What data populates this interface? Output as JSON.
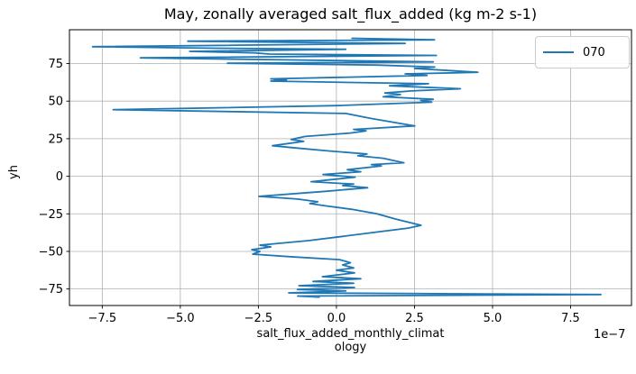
{
  "figure": {
    "title": "May, zonally averaged salt_flux_added (kg m-2 s-1)",
    "ylabel": "yh",
    "xlabel_line1": "salt_flux_added_monthly_climat",
    "xlabel_line2": "ology",
    "offset_text": "1e−7",
    "legend": {
      "label": "070",
      "line_color": "#1f77b4"
    }
  },
  "chart_data": {
    "type": "line",
    "title": "May, zonally averaged salt_flux_added (kg m-2 s-1)",
    "xlabel": "salt_flux_added_monthly_climatology",
    "ylabel": "yh",
    "x_scale": 1e-07,
    "x_offset_label": "1e−7",
    "grid": true,
    "legend_position": "upper right",
    "xlim": [
      -8.55,
      9.45
    ],
    "ylim": [
      -86.0,
      97.5
    ],
    "xticks": {
      "values": [
        -7.5,
        -5.0,
        -2.5,
        0.0,
        2.5,
        5.0,
        7.5
      ],
      "labels": [
        "−7.5",
        "−5.0",
        "−2.5",
        "0.0",
        "2.5",
        "5.0",
        "7.5"
      ]
    },
    "yticks": {
      "values": [
        75,
        50,
        25,
        0,
        -25,
        -50,
        -75
      ],
      "labels": [
        "75",
        "50",
        "25",
        "0",
        "−25",
        "−50",
        "−75"
      ]
    },
    "colors": {
      "line": "#1f77b4",
      "grid": "#b0b0b0",
      "spine": "#000000",
      "text": "#000000"
    },
    "series": [
      {
        "name": "070",
        "points": [
          [
            0.5,
            91.8
          ],
          [
            3.14,
            90.8
          ],
          [
            -4.76,
            89.9
          ],
          [
            2.2,
            88.4
          ],
          [
            -7.81,
            86.2
          ],
          [
            -3.9,
            85.2
          ],
          [
            0.3,
            84.5
          ],
          [
            -4.7,
            83.1
          ],
          [
            -2.6,
            82.1
          ],
          [
            -2.15,
            81.3
          ],
          [
            3.2,
            80.4
          ],
          [
            -6.28,
            78.8
          ],
          [
            -1.4,
            77.4
          ],
          [
            3.1,
            76.1
          ],
          [
            -3.49,
            75.2
          ],
          [
            1.3,
            74.0
          ],
          [
            3.15,
            72.7
          ],
          [
            2.5,
            71.7
          ],
          [
            4.53,
            69.2
          ],
          [
            2.2,
            68.1
          ],
          [
            2.9,
            67.1
          ],
          [
            -2.1,
            64.8
          ],
          [
            -1.6,
            64.1
          ],
          [
            -2.1,
            63.3
          ],
          [
            2.95,
            61.6
          ],
          [
            1.7,
            60.2
          ],
          [
            3.97,
            58.2
          ],
          [
            2.4,
            56.8
          ],
          [
            1.55,
            55.4
          ],
          [
            2.05,
            54.4
          ],
          [
            1.5,
            52.9
          ],
          [
            3.1,
            51.2
          ],
          [
            2.7,
            50.3
          ],
          [
            3.05,
            49.3
          ],
          [
            0.0,
            47.0
          ],
          [
            -7.15,
            44.3
          ],
          [
            0.3,
            41.8
          ],
          [
            1.1,
            38.5
          ],
          [
            2.51,
            33.5
          ],
          [
            0.55,
            31.2
          ],
          [
            0.95,
            30.2
          ],
          [
            0.45,
            28.8
          ],
          [
            -1.0,
            26.5
          ],
          [
            -1.45,
            24.5
          ],
          [
            -1.05,
            23.2
          ],
          [
            -2.05,
            20.3
          ],
          [
            -1.3,
            18.8
          ],
          [
            -0.2,
            16.8
          ],
          [
            0.98,
            14.8
          ],
          [
            0.69,
            13.6
          ],
          [
            1.5,
            12.0
          ],
          [
            2.16,
            9.0
          ],
          [
            1.12,
            7.8
          ],
          [
            1.44,
            6.9
          ],
          [
            0.35,
            4.4
          ],
          [
            0.78,
            3.0
          ],
          [
            -0.43,
            1.2
          ],
          [
            0.6,
            -0.6
          ],
          [
            -0.81,
            -3.6
          ],
          [
            0.55,
            -5.2
          ],
          [
            0.2,
            -6.2
          ],
          [
            1.0,
            -7.6
          ],
          [
            -0.35,
            -10.0
          ],
          [
            -2.48,
            -13.4
          ],
          [
            -1.24,
            -15.2
          ],
          [
            -0.6,
            -17.0
          ],
          [
            -0.85,
            -18.2
          ],
          [
            -0.3,
            -19.8
          ],
          [
            0.5,
            -22.0
          ],
          [
            1.3,
            -25.0
          ],
          [
            1.9,
            -28.5
          ],
          [
            2.71,
            -32.6
          ],
          [
            2.3,
            -34.5
          ],
          [
            1.15,
            -37.5
          ],
          [
            0.2,
            -40.0
          ],
          [
            -0.9,
            -42.8
          ],
          [
            -2.45,
            -45.8
          ],
          [
            -2.1,
            -47.0
          ],
          [
            -2.71,
            -48.8
          ],
          [
            -2.45,
            -50.0
          ],
          [
            -2.68,
            -51.8
          ],
          [
            -1.5,
            -53.5
          ],
          [
            0.1,
            -55.5
          ],
          [
            0.45,
            -57.5
          ],
          [
            0.2,
            -59.0
          ],
          [
            0.55,
            -61.0
          ],
          [
            0.0,
            -62.5
          ],
          [
            0.58,
            -64.3
          ],
          [
            -0.45,
            -66.8
          ],
          [
            0.78,
            -68.2
          ],
          [
            -0.75,
            -70.0
          ],
          [
            0.55,
            -71.2
          ],
          [
            -1.2,
            -72.8
          ],
          [
            0.58,
            -74.0
          ],
          [
            -1.25,
            -75.3
          ],
          [
            0.3,
            -76.3
          ],
          [
            -1.53,
            -77.6
          ],
          [
            8.47,
            -78.7
          ],
          [
            -1.24,
            -79.7
          ],
          [
            -0.55,
            -80.4
          ]
        ]
      }
    ]
  }
}
